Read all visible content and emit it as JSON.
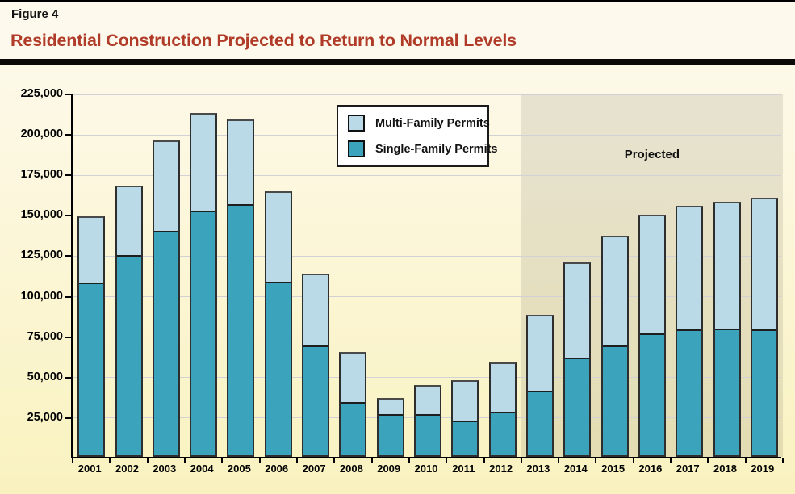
{
  "header": {
    "figure_label": "Figure 4",
    "title": "Residential Construction Projected to Return to Normal Levels",
    "title_color": "#b03b28"
  },
  "chart_data": {
    "type": "bar",
    "stacked": true,
    "title": "Residential Construction Projected to Return to Normal Levels",
    "xlabel": "",
    "ylabel": "",
    "categories": [
      "2001",
      "2002",
      "2003",
      "2004",
      "2005",
      "2006",
      "2007",
      "2008",
      "2009",
      "2010",
      "2011",
      "2012",
      "2013",
      "2014",
      "2015",
      "2016",
      "2017",
      "2018",
      "2019"
    ],
    "series": [
      {
        "name": "Single-Family Permits",
        "color": "#3ca3bd",
        "values": [
          107000,
          123500,
          138500,
          151000,
          155000,
          107500,
          68000,
          33000,
          25500,
          25500,
          21500,
          27000,
          40000,
          60500,
          68000,
          75500,
          78000,
          78500,
          78000
        ]
      },
      {
        "name": "Multi-Family Permits",
        "color": "#badae8",
        "values": [
          41500,
          44000,
          57000,
          61500,
          53500,
          56500,
          45000,
          32000,
          11000,
          19000,
          26000,
          31500,
          48000,
          59500,
          68500,
          74000,
          77000,
          79000,
          82000
        ]
      }
    ],
    "totals": [
      148500,
      167500,
      195500,
      212500,
      208500,
      164000,
      113000,
      65000,
      36500,
      44500,
      47500,
      58500,
      88000,
      120000,
      136500,
      149500,
      155000,
      157500,
      160000
    ],
    "ylim": [
      0,
      225000
    ],
    "ytick_step": 25000,
    "ytick_labels": [
      "25,000",
      "50,000",
      "75,000",
      "100,000",
      "125,000",
      "150,000",
      "175,000",
      "200,000",
      "225,000"
    ],
    "grid": true,
    "legend_position": "upper-center",
    "projected": {
      "label": "Projected",
      "from_category": "2013"
    }
  }
}
